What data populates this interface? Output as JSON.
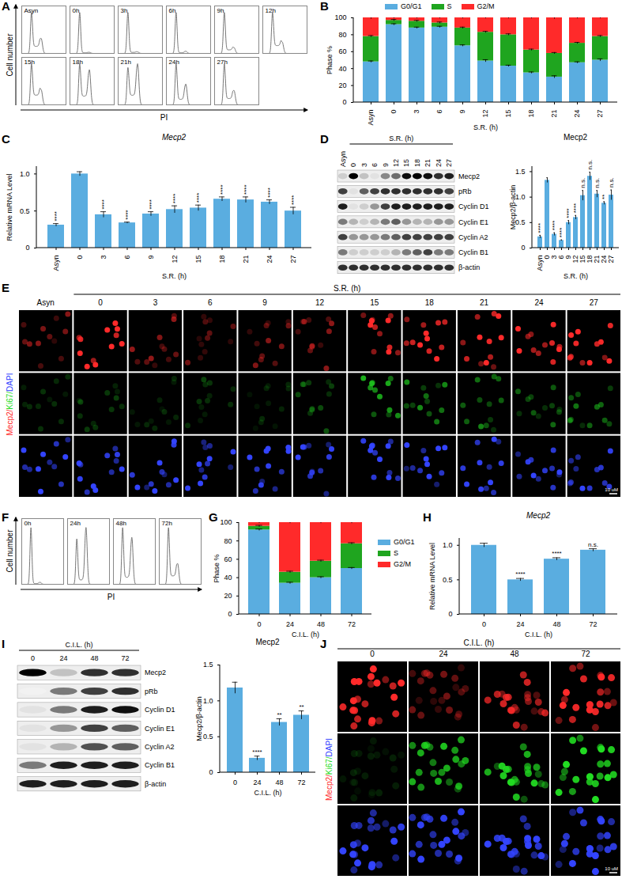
{
  "panel_letters": [
    "A",
    "B",
    "C",
    "D",
    "E",
    "F",
    "G",
    "H",
    "I",
    "J"
  ],
  "chart_data": [
    {
      "type": "bar",
      "stacked": true,
      "legend": "top",
      "categories": [
        "Asyn",
        "0",
        "3",
        "6",
        "9",
        "12",
        "15",
        "18",
        "21",
        "24",
        "27"
      ],
      "x_label": "S.R. (h)",
      "y_label": "Phase %",
      "ylim": [
        0,
        100
      ],
      "yticks": [
        0,
        20,
        40,
        60,
        80,
        100
      ],
      "series": [
        {
          "name": "G0/G1",
          "color": "#5aade0",
          "values": [
            48,
            92,
            88,
            89,
            67,
            49,
            43,
            35,
            30,
            47,
            50
          ],
          "errors": [
            1,
            1,
            1,
            1,
            1,
            1.5,
            1,
            1,
            1.5,
            1,
            1.5
          ]
        },
        {
          "name": "S",
          "color": "#1fa51f",
          "values": [
            30,
            5,
            8,
            5,
            21,
            34,
            37,
            27,
            28,
            23,
            28
          ],
          "errors": [
            1,
            1,
            1,
            1,
            1,
            1,
            1,
            1,
            1,
            1,
            1
          ]
        },
        {
          "name": "G2/M",
          "color": "#ff2a2a",
          "values": [
            22,
            3,
            4,
            6,
            12,
            17,
            20,
            38,
            42,
            30,
            22
          ],
          "errors": [
            1.5,
            1,
            1,
            1,
            1,
            1,
            1,
            1,
            1.5,
            1,
            1
          ]
        }
      ]
    },
    {
      "type": "bar",
      "title": "Mecp2",
      "categories": [
        "Asyn",
        "0",
        "3",
        "6",
        "9",
        "12",
        "15",
        "18",
        "21",
        "24",
        "27"
      ],
      "x_label": "S.R. (h)",
      "y_label": "Relative mRNA Level",
      "ylim": [
        0,
        1.1
      ],
      "yticks": [
        0,
        0.5,
        {
          "value": 1,
          "label": "1.0"
        }
      ],
      "color": "#5aade0",
      "values": [
        0.31,
        1,
        0.45,
        0.34,
        0.46,
        0.52,
        0.54,
        0.66,
        0.65,
        0.62,
        0.5
      ],
      "errors": [
        0.02,
        0.03,
        0.04,
        0.01,
        0.03,
        0.05,
        0.04,
        0.03,
        0.04,
        0.03,
        0.05
      ],
      "significance": [
        "****",
        null,
        "****",
        "****",
        "****",
        "****",
        "****",
        "****",
        "****",
        "****",
        "****"
      ]
    },
    {
      "type": "bar",
      "title": "Mecp2",
      "categories": [
        "Asyn",
        "0",
        "3",
        "6",
        "9",
        "12",
        "15",
        "18",
        "21",
        "24",
        "27"
      ],
      "x_label": "S.R. (h)",
      "y_label": "Mecp2/β-actin",
      "ylim": [
        0,
        1.6
      ],
      "yticks": [
        0,
        0.5,
        {
          "value": 1,
          "label": "1.0"
        },
        1.5
      ],
      "color": "#5aade0",
      "values": [
        0.22,
        1.33,
        0.27,
        0.15,
        0.5,
        0.6,
        1.03,
        1.41,
        1.06,
        0.88,
        1.04
      ],
      "errors": [
        0.03,
        0.05,
        0.03,
        0.01,
        0.04,
        0.04,
        0.1,
        0.08,
        0.07,
        0.03,
        0.1
      ],
      "significance": [
        "****",
        null,
        "****",
        "****",
        "****",
        "****",
        "n.s.",
        "n.s.",
        "n.s.",
        "**",
        "n.s."
      ]
    },
    {
      "type": "bar",
      "stacked": true,
      "legend": "right",
      "categories": [
        "0",
        "24",
        "48",
        "72"
      ],
      "x_label": "C.I.L. (h)",
      "y_label": "Phase %",
      "ylim": [
        0,
        100
      ],
      "yticks": [
        0,
        20,
        40,
        60,
        80,
        100
      ],
      "series": [
        {
          "name": "G0/G1",
          "color": "#5aade0",
          "values": [
            92,
            34,
            40,
            50
          ],
          "errors": [
            1,
            1,
            1,
            1
          ]
        },
        {
          "name": "S",
          "color": "#1fa51f",
          "values": [
            4,
            12,
            18,
            27
          ],
          "errors": [
            1,
            1,
            1,
            1
          ]
        },
        {
          "name": "G2/M",
          "color": "#ff2a2a",
          "values": [
            4,
            54,
            42,
            23
          ],
          "errors": [
            1,
            1,
            1,
            1
          ]
        }
      ]
    },
    {
      "type": "bar",
      "title": "Mecp2",
      "categories": [
        "0",
        "24",
        "48",
        "72"
      ],
      "x_label": "C.I.L. (h)",
      "y_label": "Relative mRNA Level",
      "ylim": [
        0,
        1.1
      ],
      "yticks": [
        0,
        0.5,
        {
          "value": 1,
          "label": "1.0"
        }
      ],
      "color": "#5aade0",
      "values": [
        1,
        0.5,
        0.8,
        0.93
      ],
      "errors": [
        0.03,
        0.02,
        0.02,
        0.02
      ],
      "significance": [
        null,
        "****",
        "****",
        "n.s."
      ]
    },
    {
      "type": "bar",
      "title": "Mecp2",
      "categories": [
        "0",
        "24",
        "48",
        "72"
      ],
      "x_label": "C.I.L. (h)",
      "y_label": "Mecp2/β-actin",
      "ylim": [
        0,
        1.5
      ],
      "yticks": [
        0,
        0.5,
        {
          "value": 1,
          "label": "1.0"
        },
        1.5
      ],
      "color": "#5aade0",
      "values": [
        1.18,
        0.2,
        0.7,
        0.8
      ],
      "errors": [
        0.08,
        0.03,
        0.05,
        0.06
      ],
      "significance": [
        null,
        "****",
        "**",
        "**"
      ]
    }
  ],
  "flow_histograms": [
    {
      "y_label": "Cell number",
      "x_label": "PI",
      "panels": [
        "Asyn",
        "0h",
        "3h",
        "6h",
        "9h",
        "12h",
        "15h",
        "18h",
        "21h",
        "24h",
        "27h"
      ]
    },
    {
      "y_label": "Cell number",
      "x_label": "PI",
      "panels": [
        "0h",
        "24h",
        "48h",
        "72h"
      ]
    }
  ],
  "blots": [
    {
      "header": "S.R. (h)",
      "lanes": [
        "Asyn",
        "0",
        "3",
        "6",
        "9",
        "12",
        "15",
        "18",
        "21",
        "24",
        "27"
      ],
      "rows": [
        {
          "name": "Mecp2",
          "intensity": [
            0.3,
            1,
            0.35,
            0.2,
            0.55,
            0.65,
            0.95,
            1,
            0.95,
            0.85,
            0.9
          ]
        },
        {
          "name": "pRb",
          "intensity": [
            0.8,
            0.2,
            0.7,
            0.8,
            0.85,
            0.85,
            0.85,
            0.85,
            0.85,
            0.85,
            0.8
          ]
        },
        {
          "name": "Cyclin D1",
          "intensity": [
            0.9,
            0.2,
            0.3,
            0.5,
            0.8,
            0.9,
            0.9,
            0.9,
            0.9,
            0.9,
            0.9
          ]
        },
        {
          "name": "Cyclin E1",
          "intensity": [
            0.6,
            0.4,
            0.3,
            0.4,
            0.6,
            0.7,
            0.5,
            0.4,
            0.4,
            0.5,
            0.5
          ]
        },
        {
          "name": "Cyclin A2",
          "intensity": [
            0.8,
            0.5,
            0.5,
            0.5,
            0.6,
            0.7,
            0.8,
            0.8,
            0.8,
            0.8,
            0.8
          ]
        },
        {
          "name": "Cyclin B1",
          "intensity": [
            0.6,
            0.3,
            0.3,
            0.3,
            0.3,
            0.4,
            0.6,
            0.7,
            0.8,
            0.6,
            0.6
          ]
        },
        {
          "name": "β-actin",
          "intensity": [
            0.85,
            0.85,
            0.85,
            0.85,
            0.85,
            0.85,
            0.85,
            0.85,
            0.85,
            0.85,
            0.85
          ]
        }
      ]
    },
    {
      "header": "C.I.L. (h)",
      "lanes": [
        "0",
        "24",
        "48",
        "72"
      ],
      "rows": [
        {
          "name": "Mecp2",
          "intensity": [
            1,
            0.35,
            0.85,
            0.85
          ]
        },
        {
          "name": "pRb",
          "intensity": [
            0.1,
            0.6,
            0.8,
            0.85
          ]
        },
        {
          "name": "Cyclin D1",
          "intensity": [
            0.2,
            0.6,
            0.9,
            0.95
          ]
        },
        {
          "name": "Cyclin E1",
          "intensity": [
            0.2,
            0.5,
            0.8,
            0.7
          ]
        },
        {
          "name": "Cyclin A2",
          "intensity": [
            0.2,
            0.4,
            0.75,
            0.7
          ]
        },
        {
          "name": "Cyclin B1",
          "intensity": [
            0.6,
            0.9,
            0.9,
            0.9
          ]
        },
        {
          "name": "β-actin",
          "intensity": [
            0.9,
            0.9,
            0.9,
            0.9
          ]
        }
      ]
    }
  ],
  "images": [
    {
      "header": "S.R. (h)",
      "lanes": [
        "Asyn",
        "0",
        "3",
        "6",
        "9",
        "12",
        "15",
        "18",
        "21",
        "24",
        "27"
      ],
      "separator": "/",
      "scale_bar": "10 uM",
      "channels": [
        {
          "name": "Mecp2",
          "color": "#ff2a2a",
          "intensity": [
            0.35,
            0.95,
            0.4,
            0.3,
            0.35,
            0.4,
            0.85,
            0.9,
            0.8,
            0.85,
            0.75
          ]
        },
        {
          "name": "Ki67",
          "color": "#22dd22",
          "intensity": [
            0.15,
            0.2,
            0.15,
            0.2,
            0.15,
            0.25,
            0.55,
            0.45,
            0.4,
            0.35,
            0.35
          ]
        },
        {
          "name": "DAPI",
          "color": "#3344ff",
          "intensity": [
            0.8,
            0.8,
            0.8,
            0.8,
            0.8,
            0.8,
            0.8,
            0.8,
            0.8,
            0.8,
            0.8
          ]
        }
      ]
    },
    {
      "header": "C.I.L. (h)",
      "lanes": [
        "0",
        "24",
        "48",
        "72"
      ],
      "separator": "/",
      "scale_bar": "10 uM",
      "channels": [
        {
          "name": "Mecp2",
          "color": "#ff2a2a",
          "intensity": [
            0.9,
            0.3,
            0.55,
            0.75
          ]
        },
        {
          "name": "Ki67",
          "color": "#22dd22",
          "intensity": [
            0.1,
            0.6,
            0.65,
            0.85
          ]
        },
        {
          "name": "DAPI",
          "color": "#3344ff",
          "intensity": [
            0.8,
            0.8,
            0.8,
            0.8
          ]
        }
      ]
    }
  ]
}
